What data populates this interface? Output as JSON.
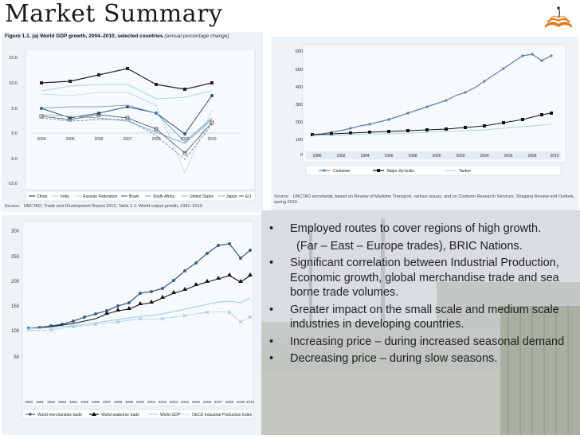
{
  "slide": {
    "title": "Market Summary",
    "bullets": [
      {
        "bullet": "•",
        "text": "Employed routes to cover regions of high growth."
      },
      {
        "bullet": "",
        "text": "(Far – East – Europe trades), BRIC Nations."
      },
      {
        "bullet": "•",
        "text": "Significant correlation between Industrial Production, Economic growth, global merchandise trade and sea borne trade volumes."
      },
      {
        "bullet": "•",
        "text": "Greater impact on the small scale and medium scale industries in developing countries."
      },
      {
        "bullet": "•",
        "text": " Increasing price – during increased seasonal demand"
      },
      {
        "bullet": "•",
        "text": " Decreasing price – during slow seasons."
      }
    ]
  },
  "figure1": {
    "caption_bold": "Figure 1.1. (a) World GDP growth, 2004–2010, selected countries",
    "caption_italic": "(annual percentage change)",
    "source_label": "Source:",
    "source_text": "UNCTAD, Trade and Development Report 2010, Table 1.1: World output growth, 1991–2010.",
    "x_labels": [
      "2004",
      "2005",
      "2006",
      "2007",
      "2008",
      "2009",
      "2010"
    ],
    "y_labels": [
      "15.0",
      "10.0",
      "5.0",
      "0.0",
      "-5.0",
      "-10.0"
    ],
    "legend": [
      "China",
      "India",
      "Russian Federation",
      "Brazil",
      "South Africa",
      "United States",
      "Japan",
      "EU"
    ]
  },
  "figure2": {
    "source_label": "Source:",
    "source_text": "UNCTAD secretariat, based on Review of Maritime Transport, various issues, and on Clarkson Research Services, Shipping Review and Outlook, spring 2010.",
    "x_labels": [
      "1986",
      "1992",
      "1994",
      "1996",
      "1998",
      "2000",
      "2002",
      "2004",
      "2006",
      "2008",
      "2010"
    ],
    "y_labels": [
      "600",
      "500",
      "400",
      "300",
      "200",
      "100",
      "0"
    ],
    "legend": [
      "Container",
      "Major dry bulks",
      "Tanker"
    ]
  },
  "figure3": {
    "x_labels": [
      "1990",
      "1991",
      "1992",
      "1993",
      "1994",
      "1995",
      "1996",
      "1997",
      "1998",
      "1999",
      "2000",
      "2001",
      "2002",
      "2003",
      "2004",
      "2005",
      "2006",
      "2007",
      "2008",
      "2009",
      "2010"
    ],
    "y_labels": [
      "300",
      "250",
      "200",
      "150",
      "100",
      "50"
    ],
    "legend": [
      "World merchandise trade",
      "World seaborne trade",
      "World GDP",
      "OECD Industrial Production Index"
    ]
  },
  "colors": {
    "panel_bg": "#eef3f7",
    "series_dark": "#2b2b2b",
    "series_blue": "#5f7fa8",
    "series_light": "#a9d3ea",
    "logo_orange": "#e07a1f"
  }
}
